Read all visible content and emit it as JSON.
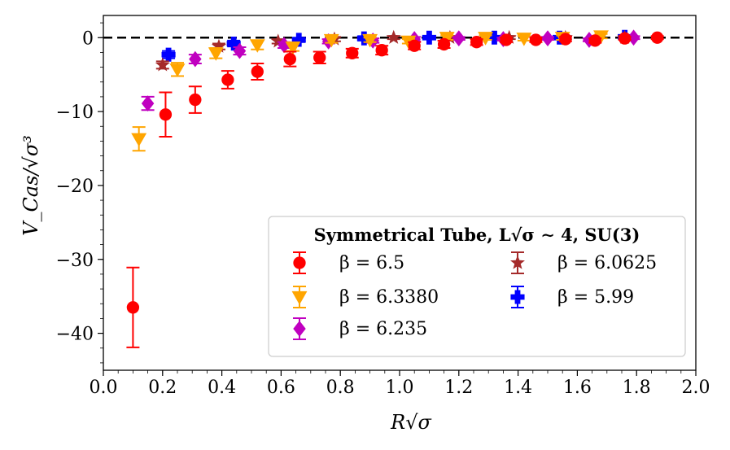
{
  "chart_data": {
    "type": "scatter",
    "xlabel": "R√σ",
    "ylabel": "V_Cas/√σ³",
    "xlim": [
      0.0,
      2.0
    ],
    "ylim": [
      -45,
      3
    ],
    "x_ticks": [
      "0.0",
      "0.2",
      "0.4",
      "0.6",
      "0.8",
      "1.0",
      "1.2",
      "1.4",
      "1.6",
      "1.8",
      "2.0"
    ],
    "y_ticks": [
      "0",
      "−10",
      "−20",
      "−30",
      "−40"
    ],
    "x_tick_values": [
      0.0,
      0.2,
      0.4,
      0.6,
      0.8,
      1.0,
      1.2,
      1.4,
      1.6,
      1.8,
      2.0
    ],
    "y_tick_values": [
      0,
      -10,
      -20,
      -30,
      -40
    ],
    "reference_line": {
      "y": 0,
      "style": "dashed",
      "color": "#000000"
    },
    "legend": {
      "title": "Symmetrical Tube, L√σ ∼ 4, SU(3)",
      "location": "lower-right"
    },
    "series": [
      {
        "name": "β = 6.5",
        "color": "#ff0000",
        "marker": "circle",
        "points": [
          {
            "x": 0.1,
            "y": -36.5,
            "err": 5.4
          },
          {
            "x": 0.21,
            "y": -10.4,
            "err": 3.0
          },
          {
            "x": 0.31,
            "y": -8.4,
            "err": 1.8
          },
          {
            "x": 0.42,
            "y": -5.7,
            "err": 1.2
          },
          {
            "x": 0.52,
            "y": -4.6,
            "err": 1.1
          },
          {
            "x": 0.63,
            "y": -2.9,
            "err": 1.0
          },
          {
            "x": 0.73,
            "y": -2.7,
            "err": 0.8
          },
          {
            "x": 0.84,
            "y": -2.1,
            "err": 0.6
          },
          {
            "x": 0.94,
            "y": -1.7,
            "err": 0.6
          },
          {
            "x": 1.05,
            "y": -1.1,
            "err": 0.5
          },
          {
            "x": 1.15,
            "y": -0.9,
            "err": 0.5
          },
          {
            "x": 1.26,
            "y": -0.6,
            "err": 0.4
          },
          {
            "x": 1.36,
            "y": -0.3,
            "err": 0.3
          },
          {
            "x": 1.46,
            "y": -0.3,
            "err": 0.3
          },
          {
            "x": 1.56,
            "y": -0.2,
            "err": 0.3
          },
          {
            "x": 1.66,
            "y": -0.4,
            "err": 0.3
          },
          {
            "x": 1.76,
            "y": -0.1,
            "err": 0.2
          },
          {
            "x": 1.87,
            "y": 0.0,
            "err": 0.2
          }
        ]
      },
      {
        "name": "β = 6.3380",
        "color": "#ffa500",
        "marker": "triangle-down",
        "points": [
          {
            "x": 0.12,
            "y": -13.7,
            "err": 1.6
          },
          {
            "x": 0.25,
            "y": -4.3,
            "err": 0.9
          },
          {
            "x": 0.38,
            "y": -2.1,
            "err": 0.7
          },
          {
            "x": 0.52,
            "y": -1.0,
            "err": 0.6
          },
          {
            "x": 0.64,
            "y": -1.3,
            "err": 0.5
          },
          {
            "x": 0.77,
            "y": -0.3,
            "err": 0.4
          },
          {
            "x": 0.9,
            "y": -0.3,
            "err": 0.3
          },
          {
            "x": 1.03,
            "y": -0.5,
            "err": 0.3
          },
          {
            "x": 1.16,
            "y": 0.0,
            "err": 0.3
          },
          {
            "x": 1.29,
            "y": 0.0,
            "err": 0.3
          },
          {
            "x": 1.42,
            "y": -0.1,
            "err": 0.3
          },
          {
            "x": 1.55,
            "y": 0.0,
            "err": 0.3
          },
          {
            "x": 1.68,
            "y": 0.2,
            "err": 0.3
          }
        ]
      },
      {
        "name": "β = 6.235",
        "color": "#c000c0",
        "marker": "diamond",
        "points": [
          {
            "x": 0.15,
            "y": -8.9,
            "err": 0.9
          },
          {
            "x": 0.31,
            "y": -2.9,
            "err": 0.6
          },
          {
            "x": 0.46,
            "y": -1.8,
            "err": 0.5
          },
          {
            "x": 0.61,
            "y": -1.0,
            "err": 0.4
          },
          {
            "x": 0.76,
            "y": -0.5,
            "err": 0.3
          },
          {
            "x": 0.91,
            "y": -0.4,
            "err": 0.3
          },
          {
            "x": 1.05,
            "y": -0.2,
            "err": 0.3
          },
          {
            "x": 1.2,
            "y": -0.1,
            "err": 0.2
          },
          {
            "x": 1.35,
            "y": -0.2,
            "err": 0.2
          },
          {
            "x": 1.5,
            "y": -0.1,
            "err": 0.2
          },
          {
            "x": 1.64,
            "y": -0.3,
            "err": 0.2
          },
          {
            "x": 1.79,
            "y": 0.0,
            "err": 0.2
          }
        ]
      },
      {
        "name": "β = 6.0625",
        "color": "#a52a2a",
        "marker": "star",
        "points": [
          {
            "x": 0.2,
            "y": -3.7,
            "err": 0.5
          },
          {
            "x": 0.39,
            "y": -1.2,
            "err": 0.4
          },
          {
            "x": 0.59,
            "y": -0.5,
            "err": 0.3
          },
          {
            "x": 0.78,
            "y": -0.2,
            "err": 0.3
          },
          {
            "x": 0.98,
            "y": 0.0,
            "err": 0.2
          },
          {
            "x": 1.17,
            "y": 0.0,
            "err": 0.2
          },
          {
            "x": 1.37,
            "y": 0.0,
            "err": 0.2
          },
          {
            "x": 1.56,
            "y": 0.0,
            "err": 0.2
          },
          {
            "x": 1.76,
            "y": 0.0,
            "err": 0.2
          }
        ]
      },
      {
        "name": "β = 5.99",
        "color": "#0000ff",
        "marker": "plus",
        "points": [
          {
            "x": 0.22,
            "y": -2.3,
            "err": 0.5
          },
          {
            "x": 0.44,
            "y": -0.8,
            "err": 0.4
          },
          {
            "x": 0.66,
            "y": -0.3,
            "err": 0.3
          },
          {
            "x": 0.88,
            "y": -0.1,
            "err": 0.3
          },
          {
            "x": 1.1,
            "y": 0.0,
            "err": 0.2
          },
          {
            "x": 1.32,
            "y": 0.0,
            "err": 0.2
          },
          {
            "x": 1.54,
            "y": 0.0,
            "err": 0.2
          },
          {
            "x": 1.76,
            "y": 0.1,
            "err": 0.2
          }
        ]
      }
    ]
  }
}
